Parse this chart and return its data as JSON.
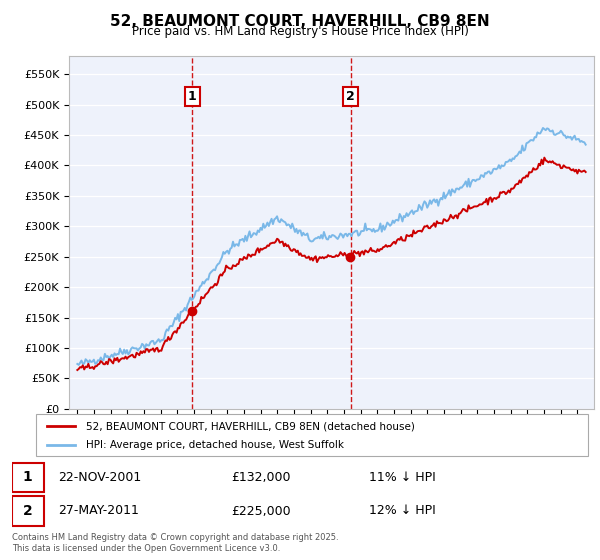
{
  "title": "52, BEAUMONT COURT, HAVERHILL, CB9 8EN",
  "subtitle": "Price paid vs. HM Land Registry's House Price Index (HPI)",
  "ylim": [
    0,
    580000
  ],
  "yticks": [
    0,
    50000,
    100000,
    150000,
    200000,
    250000,
    300000,
    350000,
    400000,
    450000,
    500000,
    550000
  ],
  "ytick_labels": [
    "£0",
    "£50K",
    "£100K",
    "£150K",
    "£200K",
    "£250K",
    "£300K",
    "£350K",
    "£400K",
    "£450K",
    "£500K",
    "£550K"
  ],
  "background_color": "#eef2fb",
  "hpi_color": "#7ab8e8",
  "price_color": "#cc0000",
  "vline_color": "#cc0000",
  "legend_entry1": "52, BEAUMONT COURT, HAVERHILL, CB9 8EN (detached house)",
  "legend_entry2": "HPI: Average price, detached house, West Suffolk",
  "marker1_date": "22-NOV-2001",
  "marker1_price": "£132,000",
  "marker1_hpi": "11% ↓ HPI",
  "marker2_date": "27-MAY-2011",
  "marker2_price": "£225,000",
  "marker2_hpi": "12% ↓ HPI",
  "copyright": "Contains HM Land Registry data © Crown copyright and database right 2025.\nThis data is licensed under the Open Government Licence v3.0.",
  "vline1_x": 2001.9,
  "vline2_x": 2011.4,
  "xlim_left": 1994.5,
  "xlim_right": 2026.0
}
